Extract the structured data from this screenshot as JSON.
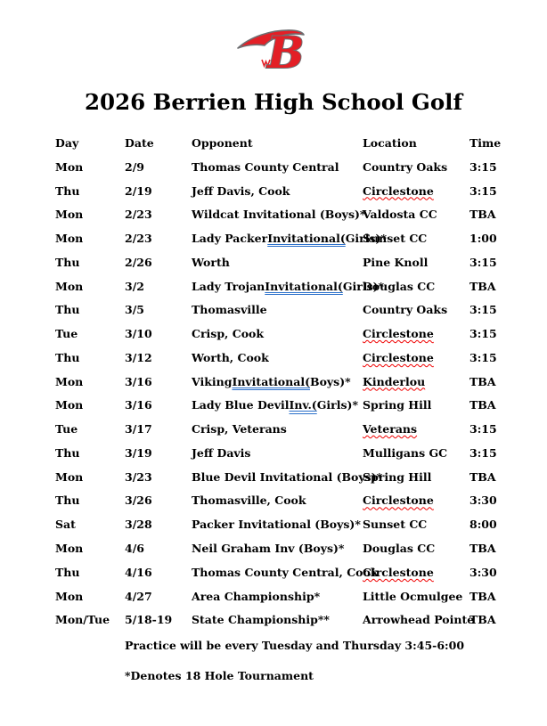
{
  "title": "2026 Berrien High School Golf",
  "logo": {
    "letter": "B",
    "description": "berrien-b-logo"
  },
  "colors": {
    "logo_red": "#e31f26",
    "logo_outline": "#6d6e71",
    "spellcheck_red": "#f00000",
    "grammar_blue": "#2a6fc9",
    "text": "#000000",
    "page_background": "#ffffff"
  },
  "table": {
    "headers": {
      "day": "Day",
      "date": "Date",
      "opponent": "Opponent",
      "location": "Location",
      "time": "Time"
    },
    "rows": [
      {
        "day": "Mon",
        "date": "2/9",
        "opponent": [
          [
            "Thomas County Central",
            ""
          ]
        ],
        "location": [
          "Country Oaks",
          ""
        ],
        "time": "3:15"
      },
      {
        "day": "Thu",
        "date": "2/19",
        "opponent": [
          [
            "Jeff Davis, Cook",
            ""
          ]
        ],
        "location": [
          "Circlestone",
          "red"
        ],
        "time": "3:15"
      },
      {
        "day": "Mon",
        "date": "2/23",
        "opponent": [
          [
            "Wildcat Invitational (Boys)*",
            ""
          ]
        ],
        "location": [
          "Valdosta CC",
          ""
        ],
        "time": "TBA"
      },
      {
        "day": "Mon",
        "date": "2/23",
        "opponent": [
          [
            "Lady Packer ",
            ""
          ],
          [
            "Invitational(",
            "blue"
          ],
          [
            "Girls)*",
            ""
          ]
        ],
        "location": [
          "Sunset CC",
          ""
        ],
        "time": "1:00"
      },
      {
        "day": "Thu",
        "date": "2/26",
        "opponent": [
          [
            "Worth",
            ""
          ]
        ],
        "location": [
          "Pine Knoll",
          ""
        ],
        "time": "3:15"
      },
      {
        "day": "Mon",
        "date": "3/2",
        "opponent": [
          [
            "Lady Trojan ",
            ""
          ],
          [
            "Invitational(",
            "blue"
          ],
          [
            "Girls)*",
            ""
          ]
        ],
        "location": [
          "Douglas CC",
          ""
        ],
        "time": "TBA"
      },
      {
        "day": "Thu",
        "date": "3/5",
        "opponent": [
          [
            "Thomasville",
            ""
          ]
        ],
        "location": [
          "Country Oaks",
          ""
        ],
        "time": "3:15"
      },
      {
        "day": "Tue",
        "date": "3/10",
        "opponent": [
          [
            "Crisp, Cook",
            ""
          ]
        ],
        "location": [
          "Circlestone",
          "red"
        ],
        "time": "3:15"
      },
      {
        "day": "Thu",
        "date": "3/12",
        "opponent": [
          [
            "Worth, Cook",
            ""
          ]
        ],
        "location": [
          "Circlestone",
          "red"
        ],
        "time": "3:15"
      },
      {
        "day": "Mon",
        "date": "3/16",
        "opponent": [
          [
            "Viking ",
            ""
          ],
          [
            "Invitational(",
            "blue"
          ],
          [
            "Boys)*",
            ""
          ]
        ],
        "location": [
          "Kinderlou",
          "red"
        ],
        "time": "TBA"
      },
      {
        "day": "Mon",
        "date": "3/16",
        "opponent": [
          [
            "Lady Blue Devil ",
            ""
          ],
          [
            "Inv.(",
            "blue"
          ],
          [
            "Girls)*",
            ""
          ]
        ],
        "location": [
          "Spring Hill",
          ""
        ],
        "time": "TBA"
      },
      {
        "day": "Tue",
        "date": "3/17",
        "opponent": [
          [
            "Crisp, Veterans",
            ""
          ]
        ],
        "location": [
          "Veterans",
          "red"
        ],
        "time": "3:15"
      },
      {
        "day": "Thu",
        "date": "3/19",
        "opponent": [
          [
            "Jeff Davis",
            ""
          ]
        ],
        "location": [
          "Mulligans GC",
          ""
        ],
        "time": "3:15"
      },
      {
        "day": "Mon",
        "date": "3/23",
        "opponent": [
          [
            "Blue Devil Invitational (Boys)*",
            ""
          ]
        ],
        "location": [
          "Spring Hill",
          ""
        ],
        "time": "TBA"
      },
      {
        "day": "Thu",
        "date": "3/26",
        "opponent": [
          [
            "Thomasville, Cook",
            ""
          ]
        ],
        "location": [
          "Circlestone",
          "red"
        ],
        "time": "3:30"
      },
      {
        "day": "Sat",
        "date": "3/28",
        "opponent": [
          [
            "Packer Invitational (Boys)*",
            ""
          ]
        ],
        "location": [
          "Sunset CC",
          ""
        ],
        "time": "8:00"
      },
      {
        "day": "Mon",
        "date": "4/6",
        "opponent": [
          [
            "Neil Graham Inv (Boys)*",
            ""
          ]
        ],
        "location": [
          "Douglas CC",
          ""
        ],
        "time": "TBA"
      },
      {
        "day": "Thu",
        "date": "4/16",
        "opponent": [
          [
            "Thomas County Central, Cook",
            ""
          ]
        ],
        "location": [
          "Circlestone",
          "red"
        ],
        "time": "3:30"
      },
      {
        "day": "Mon",
        "date": "4/27",
        "opponent": [
          [
            "Area Championship*",
            ""
          ]
        ],
        "location": [
          "Little Ocmulgee",
          ""
        ],
        "time": "TBA"
      },
      {
        "day": "Mon/Tue",
        "date": "5/18-19",
        "opponent": [
          [
            "State Championship**",
            ""
          ]
        ],
        "location": [
          "Arrowhead Pointe",
          ""
        ],
        "time": "TBA"
      }
    ]
  },
  "notes": {
    "practice": "Practice will be every Tuesday and Thursday 3:45-6:00",
    "denotes": "*Denotes 18 Hole Tournament"
  }
}
